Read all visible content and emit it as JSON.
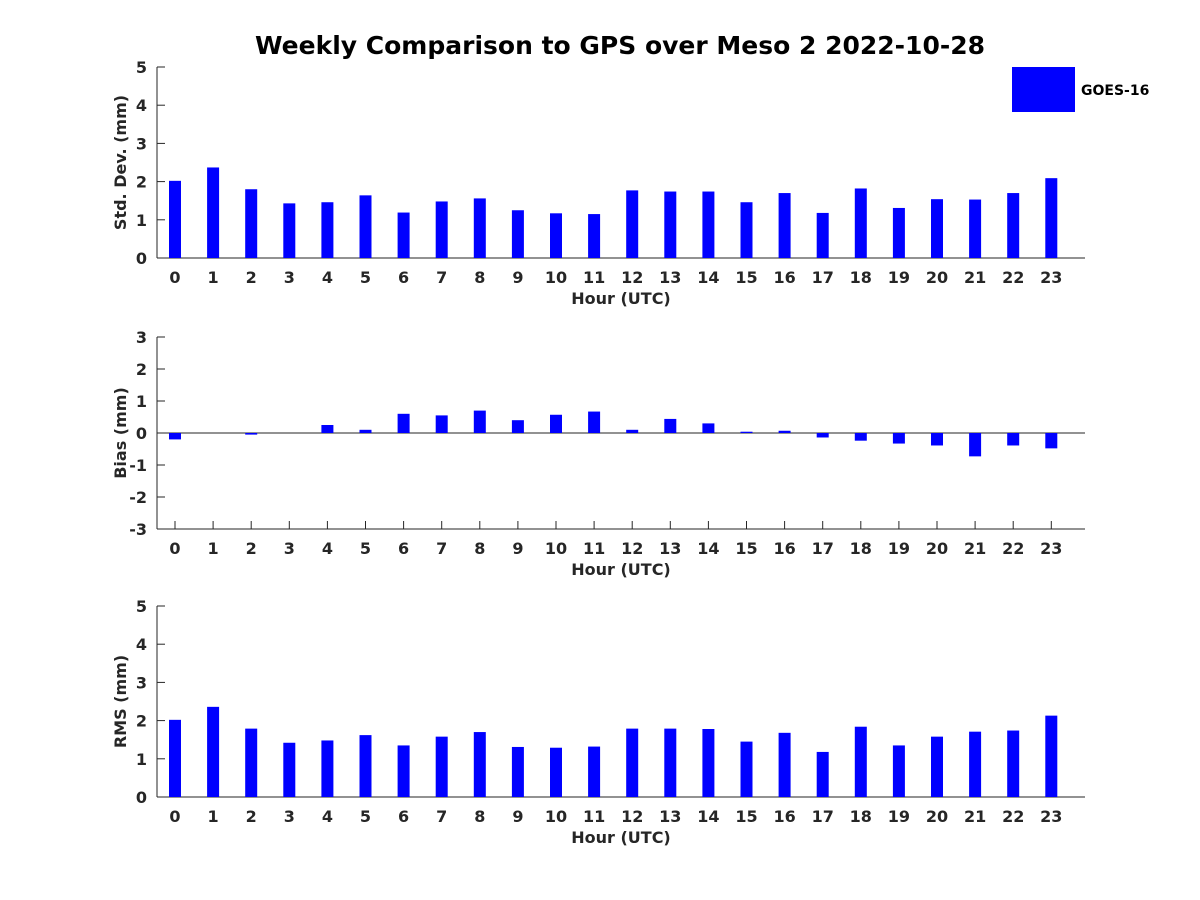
{
  "chart_data": {
    "type": "bar",
    "title": "Weekly Comparison to GPS over Meso 2 2022-10-28",
    "legend": {
      "label": "GOES-16",
      "color": "#0000ff",
      "placement": "top-right"
    },
    "categories": [
      "0",
      "1",
      "2",
      "3",
      "4",
      "5",
      "6",
      "7",
      "8",
      "9",
      "10",
      "11",
      "12",
      "13",
      "14",
      "15",
      "16",
      "17",
      "18",
      "19",
      "20",
      "21",
      "22",
      "23"
    ],
    "panels": [
      {
        "name": "std-dev",
        "ylabel": "Std. Dev. (mm)",
        "xlabel": "Hour (UTC)",
        "ylim": [
          0,
          5
        ],
        "yticks": [
          "0",
          "1",
          "2",
          "3",
          "4",
          "5"
        ],
        "values": [
          2.02,
          2.37,
          1.8,
          1.43,
          1.46,
          1.64,
          1.19,
          1.48,
          1.56,
          1.25,
          1.17,
          1.15,
          1.77,
          1.74,
          1.74,
          1.46,
          1.7,
          1.18,
          1.82,
          1.31,
          1.54,
          1.53,
          1.7,
          2.09
        ]
      },
      {
        "name": "bias",
        "ylabel": "Bias (mm)",
        "xlabel": "Hour (UTC)",
        "ylim": [
          -3,
          3
        ],
        "yticks": [
          "-3",
          "-2",
          "-1",
          "0",
          "1",
          "2",
          "3"
        ],
        "values": [
          -0.2,
          0.0,
          -0.05,
          0.0,
          0.25,
          0.1,
          0.6,
          0.55,
          0.7,
          0.4,
          0.57,
          0.67,
          0.1,
          0.44,
          0.3,
          0.04,
          0.07,
          -0.14,
          -0.24,
          -0.33,
          -0.39,
          -0.73,
          -0.39,
          -0.48
        ]
      },
      {
        "name": "rms",
        "ylabel": "RMS (mm)",
        "xlabel": "Hour (UTC)",
        "ylim": [
          0,
          5
        ],
        "yticks": [
          "0",
          "1",
          "2",
          "3",
          "4",
          "5"
        ],
        "values": [
          2.02,
          2.36,
          1.79,
          1.42,
          1.48,
          1.62,
          1.35,
          1.58,
          1.7,
          1.31,
          1.29,
          1.32,
          1.79,
          1.79,
          1.78,
          1.45,
          1.68,
          1.18,
          1.84,
          1.35,
          1.58,
          1.71,
          1.74,
          2.13
        ]
      }
    ]
  }
}
